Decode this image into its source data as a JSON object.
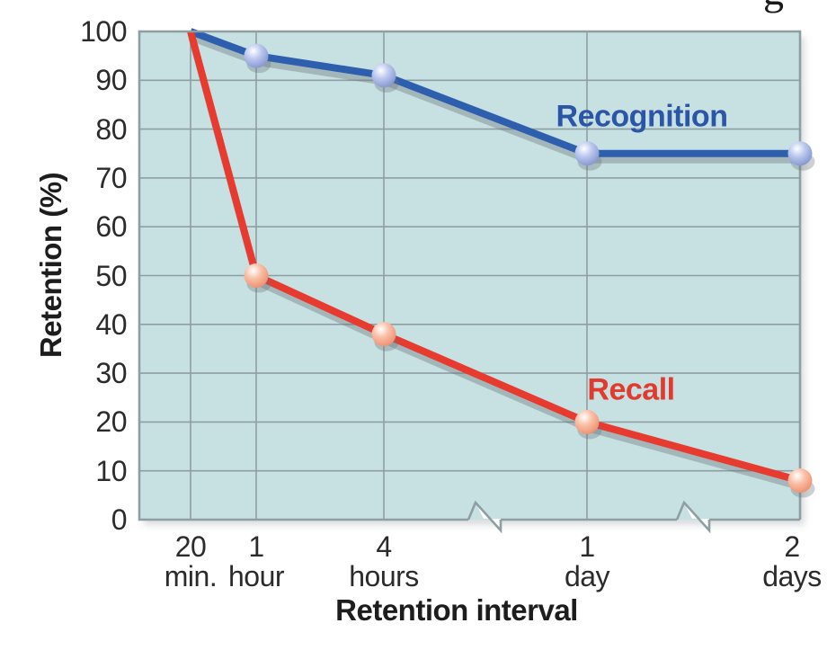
{
  "page": {
    "clipped_heading_fragment": "g"
  },
  "chart_data": {
    "type": "line",
    "title": "",
    "xlabel": "Retention interval",
    "ylabel": "Retention (%)",
    "ylim": [
      0,
      100
    ],
    "yticks": [
      0,
      10,
      20,
      30,
      40,
      50,
      60,
      70,
      80,
      90,
      100
    ],
    "categories": [
      {
        "line1": "20",
        "line2": "min."
      },
      {
        "line1": "1",
        "line2": "hour"
      },
      {
        "line1": "4",
        "line2": "hours"
      },
      {
        "line1": "1",
        "line2": "day"
      },
      {
        "line1": "2",
        "line2": "days"
      }
    ],
    "series": [
      {
        "name": "Recognition",
        "values": [
          100,
          95,
          91,
          75,
          75
        ],
        "line_color": "#2d5fae",
        "marker_core_color": "#bcc8ee",
        "marker_edge_color": "#7e90cc",
        "label_color": "#2b56a7"
      },
      {
        "name": "Recall",
        "values": [
          100,
          50,
          38,
          20,
          8
        ],
        "line_color": "#e63b2e",
        "marker_core_color": "#f9c0a8",
        "marker_edge_color": "#ec8a69",
        "label_color": "#e23a2d"
      }
    ],
    "axis_breaks": {
      "count": 2,
      "description": "zigzag break marks on x-axis between '4 hours' and '1 day', and between '1 day' and '2 days'"
    },
    "grid": true,
    "legend_position": "inline labels next to lines",
    "markers": "3D sphere markers at all points except the first shared 100% point",
    "plot_bg_color": "#c7e0e2",
    "grid_color": "#8f9ea2",
    "text_color": "#2b2b2b"
  }
}
